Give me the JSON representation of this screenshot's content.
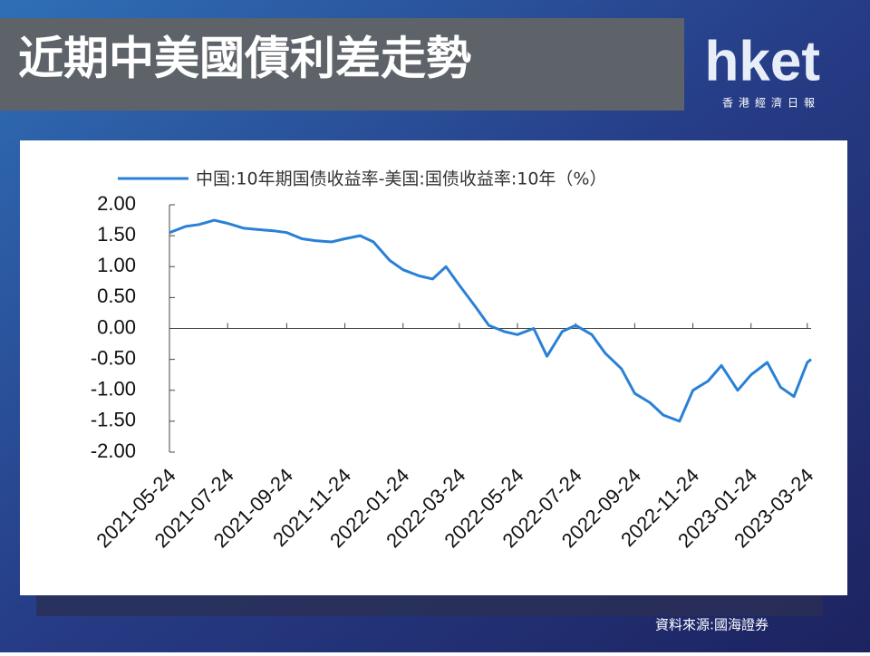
{
  "chart_data": {
    "type": "line",
    "title": "近期中美國債利差走勢",
    "series": [
      {
        "name": "中国:10年期国债收益率-美国:国债收益率:10年（%）",
        "color": "#2a80d6",
        "values": [
          1.55,
          1.65,
          1.68,
          1.75,
          1.7,
          1.62,
          1.6,
          1.58,
          1.55,
          1.45,
          1.42,
          1.4,
          1.45,
          1.5,
          1.4,
          1.1,
          0.95,
          0.85,
          0.8,
          1.0,
          0.7,
          0.35,
          0.05,
          -0.05,
          -0.1,
          0.0,
          -0.45,
          -0.05,
          0.05,
          -0.1,
          -0.4,
          -0.65,
          -1.05,
          -1.2,
          -1.4,
          -1.5,
          -1.0,
          -0.85,
          -0.6,
          -1.0,
          -0.75,
          -0.55,
          -0.95,
          -1.1,
          -0.55,
          -0.5
        ]
      }
    ],
    "x": [
      "2021-05-24",
      "2021-06-10",
      "2021-06-24",
      "2021-07-10",
      "2021-07-24",
      "2021-08-10",
      "2021-08-24",
      "2021-09-10",
      "2021-09-24",
      "2021-10-10",
      "2021-10-24",
      "2021-11-10",
      "2021-11-24",
      "2021-12-10",
      "2021-12-24",
      "2022-01-10",
      "2022-01-24",
      "2022-02-10",
      "2022-02-24",
      "2022-03-10",
      "2022-03-24",
      "2022-04-10",
      "2022-04-24",
      "2022-05-10",
      "2022-05-24",
      "2022-06-10",
      "2022-06-24",
      "2022-07-10",
      "2022-07-24",
      "2022-08-10",
      "2022-08-24",
      "2022-09-10",
      "2022-09-24",
      "2022-10-10",
      "2022-10-24",
      "2022-11-10",
      "2022-11-24",
      "2022-12-10",
      "2022-12-24",
      "2023-01-10",
      "2023-01-24",
      "2023-02-10",
      "2023-02-24",
      "2023-03-10",
      "2023-03-24",
      "2023-03-28"
    ],
    "xlim": [
      "2021-05-24",
      "2023-03-28"
    ],
    "xticks": [
      "2021-05-24",
      "2021-07-24",
      "2021-09-24",
      "2021-11-24",
      "2022-01-24",
      "2022-03-24",
      "2022-05-24",
      "2022-07-24",
      "2022-09-24",
      "2022-11-24",
      "2023-01-24",
      "2023-03-24"
    ],
    "ylim": [
      -2,
      2
    ],
    "yticks": [
      {
        "value": 2,
        "label": "2.00"
      },
      {
        "value": 1.5,
        "label": "1.50"
      },
      {
        "value": 1,
        "label": "1.00"
      },
      {
        "value": 0.5,
        "label": "0.50"
      },
      {
        "value": 0,
        "label": "0.00"
      },
      {
        "value": -0.5,
        "label": "-0.50"
      },
      {
        "value": -1,
        "label": "-1.00"
      },
      {
        "value": -1.5,
        "label": "-1.50"
      },
      {
        "value": -2,
        "label": "-2.00"
      }
    ]
  },
  "brand": {
    "logo": "hket",
    "name": "香港經濟日報"
  },
  "source": "資料來源:國海證券"
}
